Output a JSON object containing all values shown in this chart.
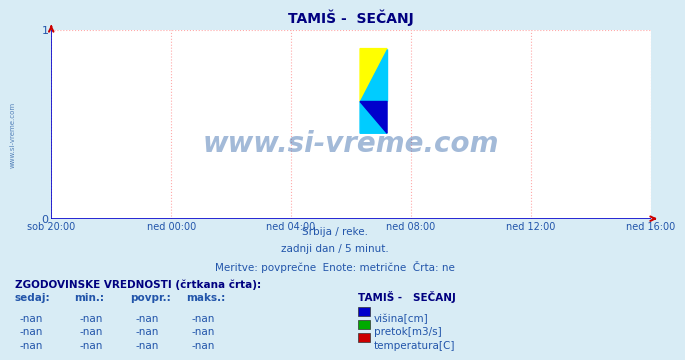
{
  "title": "TAMIŠ -  SEČANJ",
  "bg_color": "#d8ecf5",
  "plot_bg_color": "#ffffff",
  "grid_color": "#ffaaaa",
  "axis_color": "#0000cc",
  "arrow_color": "#cc0000",
  "title_color": "#000080",
  "text_color": "#3366aa",
  "label_color": "#2255aa",
  "watermark": "www.si-vreme.com",
  "watermark_color": "#3366aa",
  "subtitle_lines": [
    "Srbija / reke.",
    "zadnji dan / 5 minut.",
    "Meritve: povprečne  Enote: metrične  Črta: ne"
  ],
  "xlabels": [
    "sob 20:00",
    "ned 00:00",
    "ned 04:00",
    "ned 08:00",
    "ned 12:00",
    "ned 16:00"
  ],
  "ytick_labels": [
    "0",
    "1"
  ],
  "ytick_vals": [
    0,
    1
  ],
  "ylim": [
    0,
    1
  ],
  "legend_title": "TAMIŠ -   SEČANJ",
  "legend_items": [
    {
      "label": "višina[cm]",
      "color": "#0000cc"
    },
    {
      "label": "pretok[m3/s]",
      "color": "#00aa00"
    },
    {
      "label": "temperatura[C]",
      "color": "#cc0000"
    }
  ],
  "hist_header": "ZGODOVINSKE VREDNOSTI (črtkana črta):",
  "hist_cols": [
    "sedaj:",
    "min.:",
    "povpr.:",
    "maks.:"
  ],
  "hist_rows": [
    [
      "-nan",
      "-nan",
      "-nan",
      "-nan"
    ],
    [
      "-nan",
      "-nan",
      "-nan",
      "-nan"
    ],
    [
      "-nan",
      "-nan",
      "-nan",
      "-nan"
    ]
  ],
  "side_text": "www.si-vreme.com",
  "logo_colors": [
    "#ffff00",
    "#00ccff",
    "#0000cc"
  ]
}
